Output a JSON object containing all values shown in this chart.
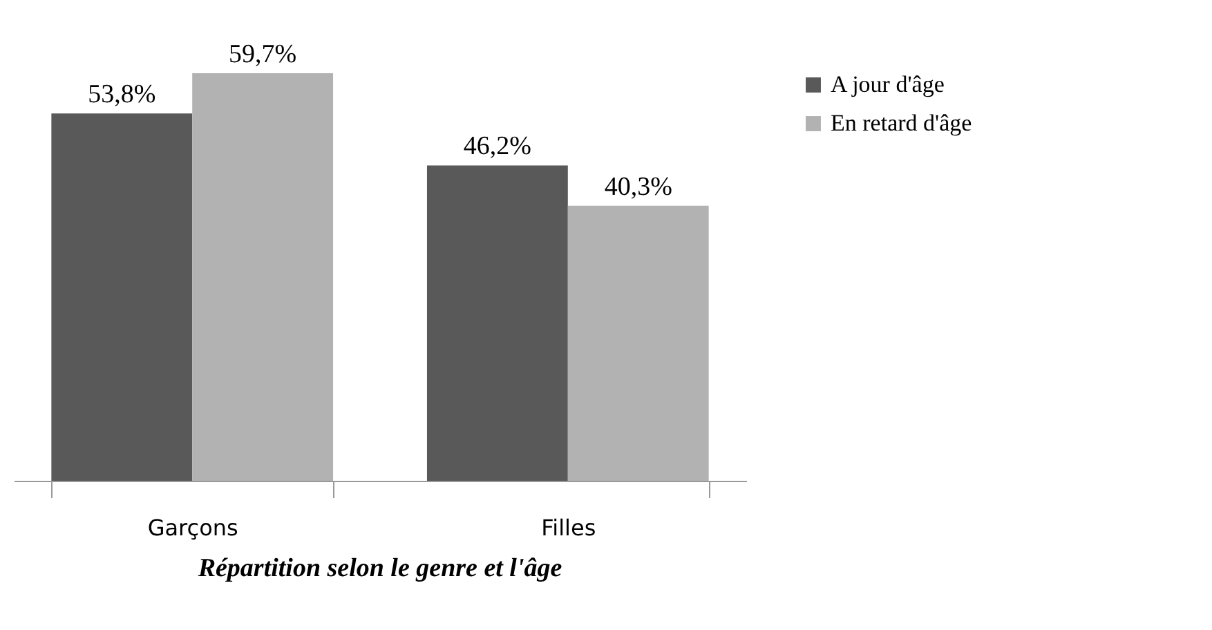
{
  "chart_data": {
    "type": "bar",
    "title": "Répartition selon le genre et l'âge",
    "categories": [
      "Garçons",
      "Filles"
    ],
    "series": [
      {
        "name": "A jour d'âge",
        "color": "#595959",
        "values": [
          53.8,
          46.2
        ],
        "value_labels": [
          "53,8%",
          "46,2%"
        ]
      },
      {
        "name": "En retard d'âge",
        "color": "#b2b2b2",
        "values": [
          59.7,
          40.3
        ],
        "value_labels": [
          "59,7%",
          "40,3%"
        ]
      }
    ],
    "legend": "right",
    "grid": false
  }
}
